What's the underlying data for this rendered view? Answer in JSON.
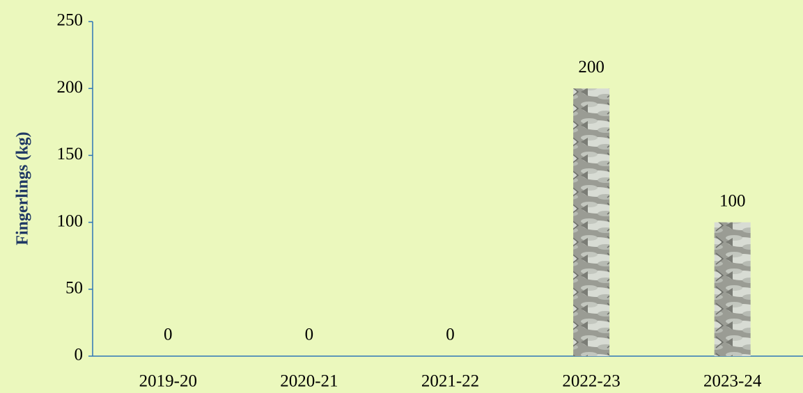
{
  "chart_data": {
    "type": "bar",
    "y_label": "Fingerlings (kg)",
    "categories": [
      "2019-20",
      "2020-21",
      "2021-22",
      "2022-23",
      "2023-24"
    ],
    "values": [
      0,
      0,
      0,
      200,
      100
    ],
    "ylim": [
      0,
      250
    ],
    "yticks": [
      0,
      50,
      100,
      150,
      200,
      250
    ],
    "grid": false
  }
}
